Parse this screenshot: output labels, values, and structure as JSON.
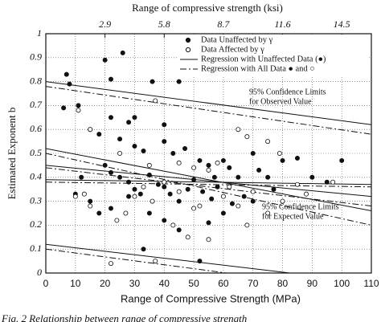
{
  "chart_data": {
    "type": "scatter",
    "x2_label": "Range of compressive strength (ksi)",
    "x_label": "Range of Compressive Strength (MPa)",
    "y_label": "Estimated Exponent b",
    "caption": "Fig. 2 Relationship between range of compressive strength",
    "xlim": [
      0,
      110
    ],
    "xticks": [
      0,
      10,
      20,
      30,
      40,
      50,
      60,
      70,
      80,
      90,
      100,
      110
    ],
    "x2lim": [
      0,
      15.95
    ],
    "x2ticks": [
      2.9,
      5.8,
      8.7,
      11.6,
      14.5
    ],
    "ylim": [
      0,
      1
    ],
    "yticks": [
      0,
      0.1,
      0.2,
      0.3,
      0.4,
      0.5,
      0.6,
      0.7,
      0.8,
      0.9,
      1
    ],
    "grid": true,
    "legend": "upper right",
    "color": "#111111",
    "series": [
      {
        "name": "Data Unaffected by γ",
        "style": "filled",
        "x": [
          7,
          8,
          6,
          11,
          20,
          26,
          22,
          28,
          36,
          45,
          15,
          18,
          25,
          30,
          33,
          40,
          43,
          47,
          52,
          55,
          60,
          62,
          65,
          70,
          72,
          75,
          80,
          85,
          90,
          95,
          20,
          22,
          25,
          28,
          30,
          32,
          35,
          38,
          40,
          42,
          45,
          48,
          50,
          53,
          56,
          58,
          63,
          67,
          70,
          10,
          12,
          15,
          18,
          22,
          35,
          40,
          45,
          55,
          60,
          33,
          52,
          28,
          57,
          77,
          100,
          22,
          40,
          30
        ],
        "values": [
          0.83,
          0.79,
          0.69,
          0.7,
          0.89,
          0.92,
          0.81,
          0.63,
          0.8,
          0.8,
          0.6,
          0.58,
          0.56,
          0.53,
          0.51,
          0.55,
          0.5,
          0.52,
          0.47,
          0.45,
          0.47,
          0.44,
          0.4,
          0.5,
          0.43,
          0.4,
          0.47,
          0.48,
          0.4,
          0.38,
          0.45,
          0.42,
          0.4,
          0.38,
          0.35,
          0.33,
          0.41,
          0.37,
          0.36,
          0.33,
          0.3,
          0.35,
          0.39,
          0.34,
          0.31,
          0.36,
          0.29,
          0.32,
          0.3,
          0.33,
          0.4,
          0.3,
          0.25,
          0.27,
          0.25,
          0.22,
          0.18,
          0.21,
          0.25,
          0.1,
          0.05,
          0.32,
          0.4,
          0.35,
          0.47,
          0.65,
          0.62,
          0.65
        ]
      },
      {
        "name": "Data Affected by γ",
        "style": "open",
        "x": [
          11,
          15,
          13,
          10,
          15,
          25,
          35,
          37,
          45,
          50,
          55,
          58,
          65,
          68,
          75,
          79,
          85,
          97,
          70,
          60,
          52,
          45,
          40,
          36,
          30,
          27,
          43,
          48,
          55,
          68,
          75,
          80,
          88,
          37,
          22,
          50,
          62,
          33,
          65,
          24
        ],
        "values": [
          0.68,
          0.6,
          0.33,
          0.32,
          0.28,
          0.5,
          0.45,
          0.72,
          0.46,
          0.44,
          0.43,
          0.46,
          0.6,
          0.57,
          0.55,
          0.5,
          0.37,
          0.38,
          0.34,
          0.32,
          0.28,
          0.34,
          0.38,
          0.3,
          0.32,
          0.25,
          0.2,
          0.15,
          0.14,
          0.2,
          0.25,
          0.3,
          0.33,
          0.05,
          0.04,
          0.27,
          0.36,
          0.36,
          0.28,
          0.22
        ]
      },
      {
        "name": "Regression with Unaffected Data (●)",
        "style": "solid",
        "x": [
          0,
          110
        ],
        "values": [
          0.45,
          0.32
        ]
      },
      {
        "name": "Regression with All Data ● and ○",
        "style": "dashdot",
        "x": [
          0,
          110
        ],
        "values": [
          0.44,
          0.28
        ]
      }
    ],
    "limits": [
      {
        "style": "solid",
        "x": [
          0,
          110
        ],
        "values": [
          0.8,
          0.62
        ]
      },
      {
        "style": "dashdot",
        "x": [
          0,
          110
        ],
        "values": [
          0.78,
          0.58
        ]
      },
      {
        "style": "solid",
        "x": [
          0,
          110
        ],
        "values": [
          0.52,
          0.26
        ]
      },
      {
        "style": "dashdot",
        "x": [
          0,
          110
        ],
        "values": [
          0.5,
          0.2
        ]
      },
      {
        "style": "solid",
        "x": [
          0,
          110
        ],
        "values": [
          0.39,
          0.37
        ]
      },
      {
        "style": "dashdot",
        "x": [
          0,
          110
        ],
        "values": [
          0.38,
          0.36
        ]
      },
      {
        "style": "solid",
        "x": [
          0,
          110
        ],
        "values": [
          0.12,
          -0.04
        ]
      },
      {
        "style": "dashdot",
        "x": [
          0,
          110
        ],
        "values": [
          0.1,
          -0.08
        ]
      }
    ],
    "annotations": [
      "95% Confidence Limits",
      "for Observed Value",
      "95% Confidence Limits",
      "for Expected Value"
    ]
  }
}
